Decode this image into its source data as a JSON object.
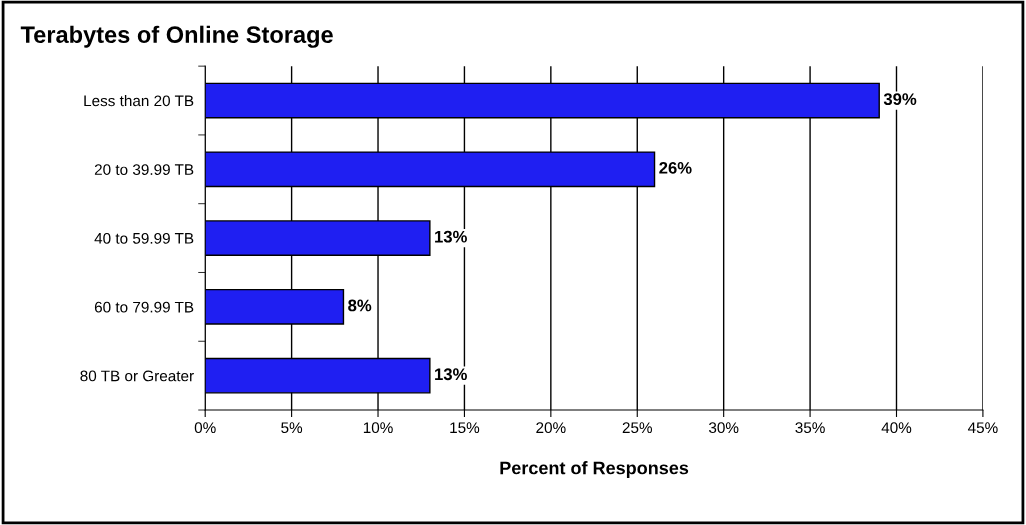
{
  "chart_data": {
    "type": "bar",
    "orientation": "horizontal",
    "title": "Terabytes of Online Storage",
    "xlabel": "Percent of Responses",
    "categories": [
      "Less than 20 TB",
      "20 to 39.99 TB",
      "40 to 59.99 TB",
      "60 to 79.99 TB",
      "80 TB or Greater"
    ],
    "values": [
      39,
      26,
      13,
      8,
      13
    ],
    "value_labels": [
      "39%",
      "26%",
      "13%",
      "8%",
      "13%"
    ],
    "color": "#1f1ff2",
    "xlim": [
      0,
      45
    ],
    "xticks": [
      {
        "value": 0,
        "label": "0%"
      },
      {
        "value": 5,
        "label": "5%"
      },
      {
        "value": 10,
        "label": "10%"
      },
      {
        "value": 15,
        "label": "15%"
      },
      {
        "value": 20,
        "label": "20%"
      },
      {
        "value": 25,
        "label": "25%"
      },
      {
        "value": 30,
        "label": "30%"
      },
      {
        "value": 35,
        "label": "35%"
      },
      {
        "value": 40,
        "label": "40%"
      },
      {
        "value": 45,
        "label": "45%"
      }
    ],
    "grid": "x",
    "legend": false
  }
}
